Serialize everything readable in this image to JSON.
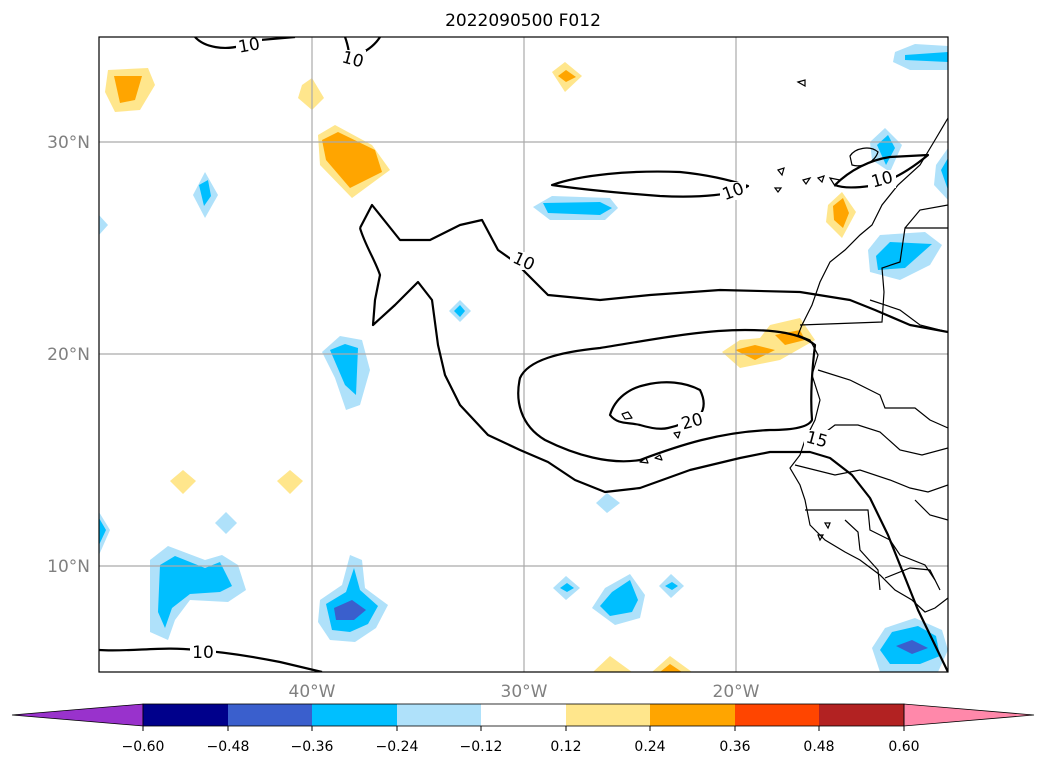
{
  "title": "2022090500 F012",
  "lat_labels": [
    "30°N",
    "20°N",
    "10°N"
  ],
  "lon_labels": [
    "40°W",
    "30°W",
    "20°W"
  ],
  "contour_labels": [
    "10",
    "10",
    "10",
    "10",
    "10",
    "10",
    "15",
    "20"
  ],
  "colorbar": {
    "ticks": [
      "−0.60",
      "−0.48",
      "−0.36",
      "−0.24",
      "−0.12",
      "0.12",
      "0.24",
      "0.36",
      "0.48",
      "0.60"
    ],
    "colors": [
      "#9932cc",
      "#00008b",
      "#3a5fcd",
      "#00bfff",
      "#afe1fa",
      "#ffffff",
      "#ffe68c",
      "#ffa500",
      "#ff4500",
      "#b22222",
      "#ff88aa"
    ]
  },
  "colors": {
    "light_blue": "#afe1fa",
    "blue": "#00bfff",
    "royal_blue": "#3a5fcd",
    "light_yellow": "#ffe68c",
    "orange": "#ffa500",
    "gridline": "#aaaaaa",
    "tick_label": "#808080"
  }
}
